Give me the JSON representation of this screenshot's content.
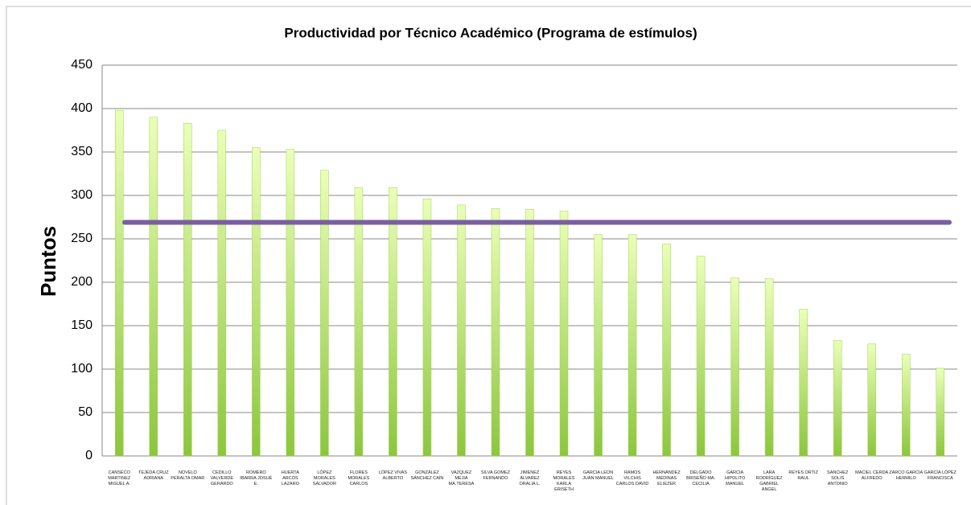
{
  "chart_data": {
    "type": "bar",
    "title": "Productividad por Técnico Académico (Programa de estímulos)",
    "y_label": "Puntos",
    "categories": [
      "CANSECO MARTINEZ MIGUEL A.",
      "TEJEDA CRUZ ADRIANA",
      "NOVELO PERALTA OMAR",
      "CEDILLO VALVERDE GERARDO",
      "ROMERO IBARRA JOSUÉ E.",
      "HUERTA ARCOS LAZARO",
      "LÓPEZ MORALES SALVADOR",
      "FLORES MORALES CARLOS",
      "LÓPEZ VIVAS ALBERTO",
      "GONZÁLEZ SÁNCHEZ CAÍN",
      "VAZQUEZ MEJIA MA.TERESA",
      "SILVA GOMEZ FERNANDO",
      "JIMENEZ ÁLVAREZ ORALIA L.",
      "REYES MORALES KARLA ERISETH",
      "GARCIA LEON JUAN MANUEL",
      "RAMOS VILCHIS CARLOS DAVID",
      "HERNÁNDEZ MEDINAS ELIEZER",
      "DELGADO BRISEÑO MA. CECILIA",
      "GARCIA HIPOLITO MANUEL",
      "LARA RODRÍGUEZ GABRIEL ANGEL",
      "REYES ORTIZ RAUL",
      "SANCHEZ SOLIS ANTONIO",
      "MACIEL CERDA ALFREDO",
      "ZARCO GARCIA HERMILO",
      "GARCÍA LÓPEZ FRANCISCA"
    ],
    "values": [
      398,
      390,
      383,
      375,
      355,
      353,
      329,
      309,
      309,
      296,
      289,
      285,
      284,
      282,
      255,
      255,
      244,
      230,
      205,
      204,
      169,
      133,
      129,
      117,
      101
    ],
    "color": "#9fd34a",
    "reference_line": {
      "value": 269,
      "color": "#7a5fa0"
    },
    "ylim": [
      0,
      450
    ],
    "yticks": [
      0,
      50,
      100,
      150,
      200,
      250,
      300,
      350,
      400,
      450
    ],
    "grid": true
  }
}
